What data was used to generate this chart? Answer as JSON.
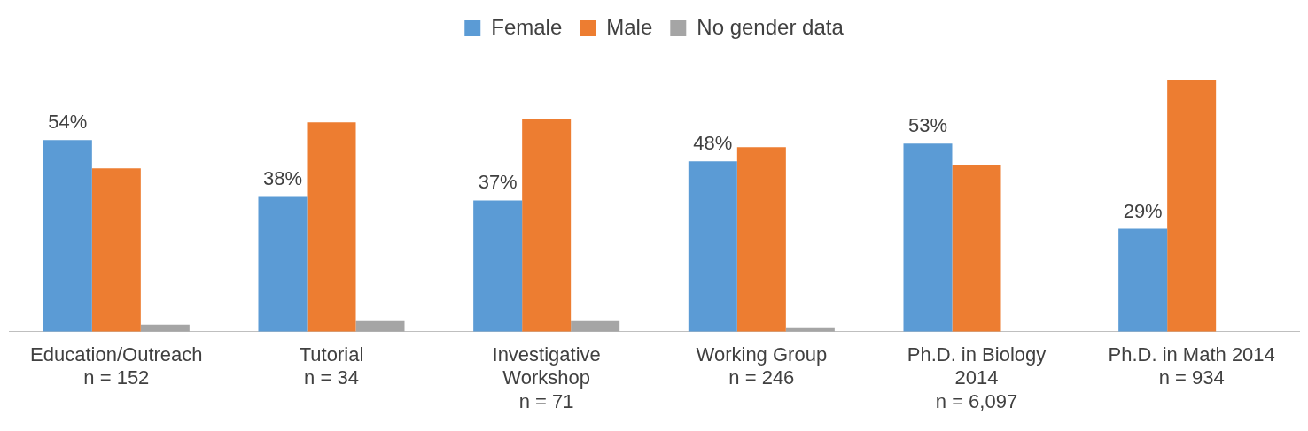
{
  "chart_data": {
    "type": "bar",
    "categories": [
      "Education/Outreach\nn = 152",
      "Tutorial\nn = 34",
      "Investigative\nWorkshop\nn = 71",
      "Working Group\nn = 246",
      "Ph.D. in Biology\n2014\nn = 6,097",
      "Ph.D. in Math 2014\nn = 934"
    ],
    "series": [
      {
        "name": "Female",
        "color": "#5b9bd5",
        "values": [
          54,
          38,
          37,
          48,
          53,
          29
        ],
        "value_labels": [
          "54%",
          "38%",
          "37%",
          "48%",
          "53%",
          "29%"
        ]
      },
      {
        "name": "Male",
        "color": "#ed7d31",
        "values": [
          46,
          59,
          60,
          52,
          47,
          71
        ]
      },
      {
        "name": "No gender data",
        "color": "#a5a5a5",
        "values": [
          2,
          3,
          3,
          1,
          null,
          null
        ]
      }
    ],
    "legend": "top",
    "grid": false,
    "tick_labels": "x"
  }
}
